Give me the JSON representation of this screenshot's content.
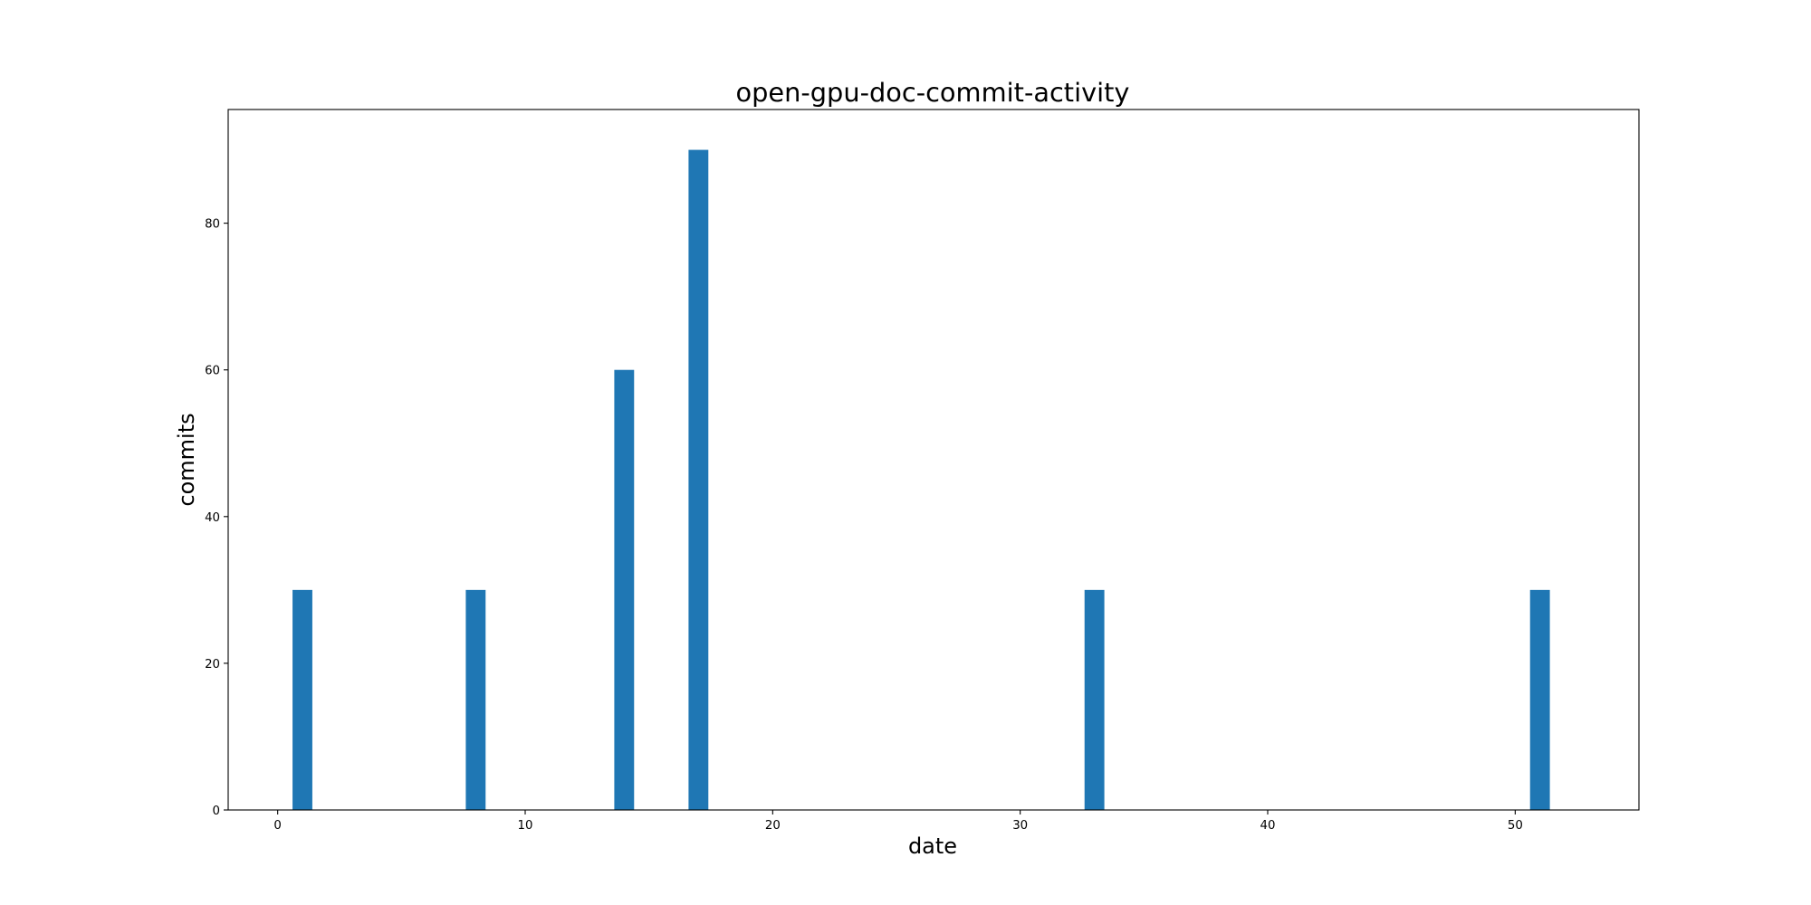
{
  "chart_data": {
    "type": "bar",
    "title": "open-gpu-doc-commit-activity",
    "xlabel": "date",
    "ylabel": "commits",
    "x": [
      1,
      8,
      14,
      17,
      33,
      51
    ],
    "values": [
      30,
      30,
      60,
      90,
      30,
      30
    ],
    "bar_width": 0.8,
    "xlim": [
      -2,
      55
    ],
    "ylim": [
      0,
      95.5
    ],
    "xticks": [
      0,
      10,
      20,
      30,
      40,
      50
    ],
    "yticks": [
      0,
      20,
      40,
      60,
      80
    ],
    "xtick_labels": [
      "0",
      "10",
      "20",
      "30",
      "40",
      "50"
    ],
    "ytick_labels": [
      "0",
      "20",
      "40",
      "60",
      "80"
    ],
    "grid": false,
    "bar_color": "#1f77b4"
  }
}
